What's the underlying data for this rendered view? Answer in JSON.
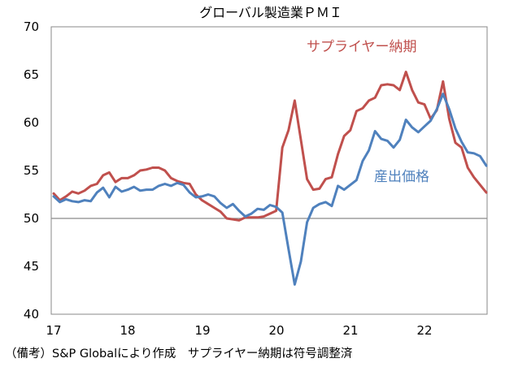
{
  "chart_data": {
    "type": "line",
    "title": "グローバル製造業ＰＭＩ",
    "xlabel": "",
    "ylabel": "",
    "ylim": [
      40,
      70
    ],
    "yticks": [
      "40",
      "45",
      "50",
      "55",
      "60",
      "65",
      "70"
    ],
    "xtick_labels": [
      "17",
      "18",
      "19",
      "20",
      "21",
      "22"
    ],
    "x_start": "2017-01",
    "reference_line": 50,
    "grid": false,
    "note": "（備考）S&P Globalにより作成　サプライヤー納期は符号調整済",
    "series": [
      {
        "name": "サプライヤー納期",
        "color": "#c0504d",
        "values": [
          52.6,
          51.9,
          52.3,
          52.8,
          52.6,
          52.9,
          53.4,
          53.6,
          54.5,
          54.8,
          53.8,
          54.2,
          54.2,
          54.5,
          55.0,
          55.1,
          55.3,
          55.3,
          55.0,
          54.2,
          53.9,
          53.7,
          53.6,
          52.5,
          51.9,
          51.5,
          51.1,
          50.7,
          50.0,
          49.9,
          49.8,
          50.1,
          50.1,
          50.1,
          50.2,
          50.5,
          50.8,
          57.4,
          59.2,
          62.3,
          58.2,
          54.1,
          53.0,
          53.1,
          54.1,
          54.3,
          56.7,
          58.6,
          59.2,
          61.2,
          61.5,
          62.3,
          62.6,
          63.9,
          64.0,
          63.9,
          63.4,
          65.3,
          63.4,
          62.1,
          61.9,
          60.4,
          61.3,
          64.3,
          60.4,
          57.9,
          57.4,
          55.3,
          54.3,
          53.5,
          52.7
        ],
        "label_color": "#c0504d"
      },
      {
        "name": "産出価格",
        "color": "#4f81bd",
        "values": [
          52.3,
          51.7,
          52.0,
          51.8,
          51.7,
          51.9,
          51.8,
          52.7,
          53.2,
          52.2,
          53.3,
          52.8,
          53.0,
          53.3,
          52.9,
          53.0,
          53.0,
          53.4,
          53.6,
          53.4,
          53.7,
          53.5,
          52.7,
          52.2,
          52.3,
          52.5,
          52.3,
          51.6,
          51.1,
          51.5,
          50.8,
          50.2,
          50.5,
          51.0,
          50.9,
          51.4,
          51.2,
          50.6,
          46.8,
          43.1,
          45.5,
          49.6,
          51.1,
          51.5,
          51.7,
          51.3,
          53.4,
          53.0,
          53.5,
          54.0,
          56.0,
          57.1,
          59.1,
          58.3,
          58.1,
          57.4,
          58.2,
          60.3,
          59.5,
          59.0,
          59.6,
          60.2,
          61.4,
          63.0,
          61.4,
          59.4,
          58.0,
          56.9,
          56.8,
          56.5,
          55.5
        ],
        "label_color": "#4f81bd"
      }
    ]
  }
}
